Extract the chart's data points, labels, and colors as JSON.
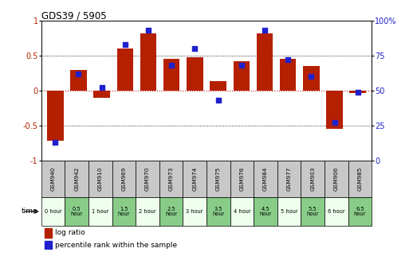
{
  "title": "GDS39 / 5905",
  "samples": [
    "GSM940",
    "GSM942",
    "GSM910",
    "GSM969",
    "GSM970",
    "GSM973",
    "GSM974",
    "GSM975",
    "GSM976",
    "GSM984",
    "GSM977",
    "GSM903",
    "GSM906",
    "GSM985"
  ],
  "time_labels": [
    "0 hour",
    "0.5\nhour",
    "1 hour",
    "1.5\nhour",
    "2 hour",
    "2.5\nhour",
    "3 hour",
    "3.5\nhour",
    "4 hour",
    "4.5\nhour",
    "5 hour",
    "5.5\nhour",
    "6 hour",
    "6.5\nhour"
  ],
  "log_ratio": [
    -0.72,
    0.3,
    -0.1,
    0.6,
    0.82,
    0.45,
    0.48,
    0.13,
    0.42,
    0.82,
    0.45,
    0.35,
    -0.55,
    -0.04
  ],
  "percentile": [
    13,
    62,
    52,
    83,
    93,
    68,
    80,
    43,
    68,
    93,
    72,
    60,
    27,
    49
  ],
  "bar_color": "#b52000",
  "dot_color": "#2020cc",
  "ylim_left": [
    -1,
    1
  ],
  "ylim_right": [
    0,
    100
  ],
  "yticks_left": [
    -1,
    -0.5,
    0,
    0.5,
    1
  ],
  "yticks_right": [
    0,
    25,
    50,
    75,
    100
  ],
  "background_color": "#ffffff",
  "time_bg_white": [
    0,
    2,
    4,
    6,
    8,
    10,
    12
  ],
  "time_bg_green": [
    1,
    3,
    5,
    7,
    9,
    11,
    13
  ],
  "gsm_bg_color": "#c8c8c8",
  "time_bg_color_white": "#eeffee",
  "time_bg_color_green": "#88cc88"
}
